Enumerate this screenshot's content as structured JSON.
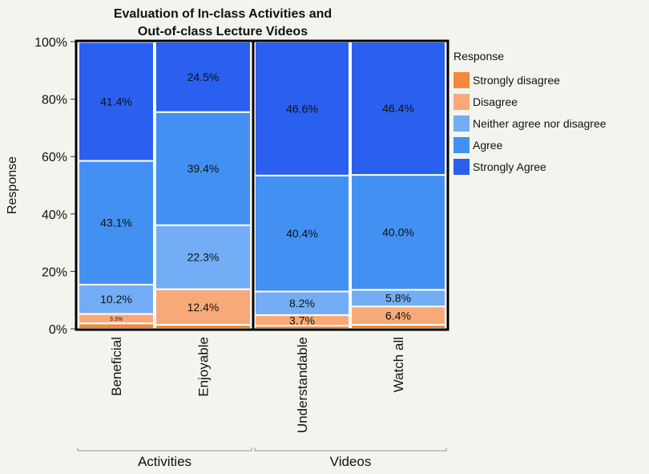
{
  "chart_data": {
    "type": "bar",
    "stacked": true,
    "title_lines": [
      "Evaluation of In-class Activities and",
      "Out-of-class Lecture Videos"
    ],
    "ylabel": "Response",
    "ylim": [
      0,
      100
    ],
    "yticks": [
      "0%",
      "20%",
      "40%",
      "60%",
      "80%",
      "100%"
    ],
    "groups": [
      {
        "name": "Activities",
        "categories": [
          "Beneficial",
          "Enjoyable"
        ]
      },
      {
        "name": "Videos",
        "categories": [
          "Understandable",
          "Watch all"
        ]
      }
    ],
    "categories": [
      "Beneficial",
      "Enjoyable",
      "Understandable",
      "Watch all"
    ],
    "series": [
      {
        "name": "Strongly disagree",
        "color": "#f5883c",
        "values": [
          1.9,
          1.4,
          1.1,
          1.4
        ],
        "labels": [
          "",
          "",
          "",
          ""
        ]
      },
      {
        "name": "Disagree",
        "color": "#f8a97a",
        "values": [
          3.3,
          12.4,
          3.7,
          6.4
        ],
        "labels": [
          "3.3%",
          "12.4%",
          "3.7%",
          "6.4%"
        ]
      },
      {
        "name": "Neither agree nor disagree",
        "color": "#73adf5",
        "values": [
          10.2,
          22.3,
          8.2,
          5.8
        ],
        "labels": [
          "10.2%",
          "22.3%",
          "8.2%",
          "5.8%"
        ]
      },
      {
        "name": "Agree",
        "color": "#4291f2",
        "values": [
          43.1,
          39.4,
          40.4,
          40.0
        ],
        "labels": [
          "43.1%",
          "39.4%",
          "40.4%",
          "40.0%"
        ]
      },
      {
        "name": "Strongly Agree",
        "color": "#2a5ff0",
        "values": [
          41.4,
          24.5,
          46.6,
          46.4
        ],
        "labels": [
          "41.4%",
          "24.5%",
          "46.6%",
          "46.4%"
        ]
      }
    ],
    "legend": {
      "title": "Response",
      "placement": "right"
    },
    "grid": false
  }
}
